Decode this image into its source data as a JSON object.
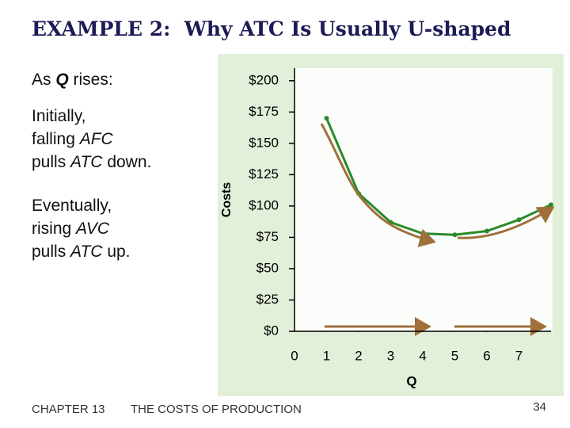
{
  "title": "EXAMPLE 2:  Why ATC Is Usually U-shaped",
  "notes": [
    [
      [
        "As ",
        "Q",
        " rises:"
      ]
    ],
    [
      [
        "Initially,"
      ],
      [
        "falling ",
        "AFC"
      ],
      [
        "pulls ",
        "ATC",
        " down."
      ]
    ],
    [
      [
        "Eventually,"
      ],
      [
        "rising ",
        "AVC"
      ],
      [
        "pulls ",
        "ATC",
        " up."
      ]
    ]
  ],
  "footer": {
    "chapter": "CHAPTER 13",
    "topic": "THE COSTS OF PRODUCTION",
    "page": "34"
  },
  "chart_data": {
    "type": "line",
    "x": [
      1,
      2,
      3,
      4,
      5,
      6,
      7,
      8
    ],
    "values": [
      170,
      110,
      87,
      78,
      77,
      80,
      89,
      101
    ],
    "color": "#2a8a2a",
    "xlim": [
      0,
      8
    ],
    "ylim": [
      0,
      210
    ],
    "xticks": [
      0,
      1,
      2,
      3,
      4,
      5,
      6,
      7
    ],
    "yticks": [
      {
        "value": 0,
        "label": "$0"
      },
      {
        "value": 25,
        "label": "$25"
      },
      {
        "value": 50,
        "label": "$50"
      },
      {
        "value": 75,
        "label": "$75"
      },
      {
        "value": 100,
        "label": "$100"
      },
      {
        "value": 125,
        "label": "$125"
      },
      {
        "value": 150,
        "label": "$150"
      },
      {
        "value": 175,
        "label": "$175"
      },
      {
        "value": 200,
        "label": "$200"
      }
    ],
    "xlabel": "Q",
    "ylabel": "Costs"
  }
}
